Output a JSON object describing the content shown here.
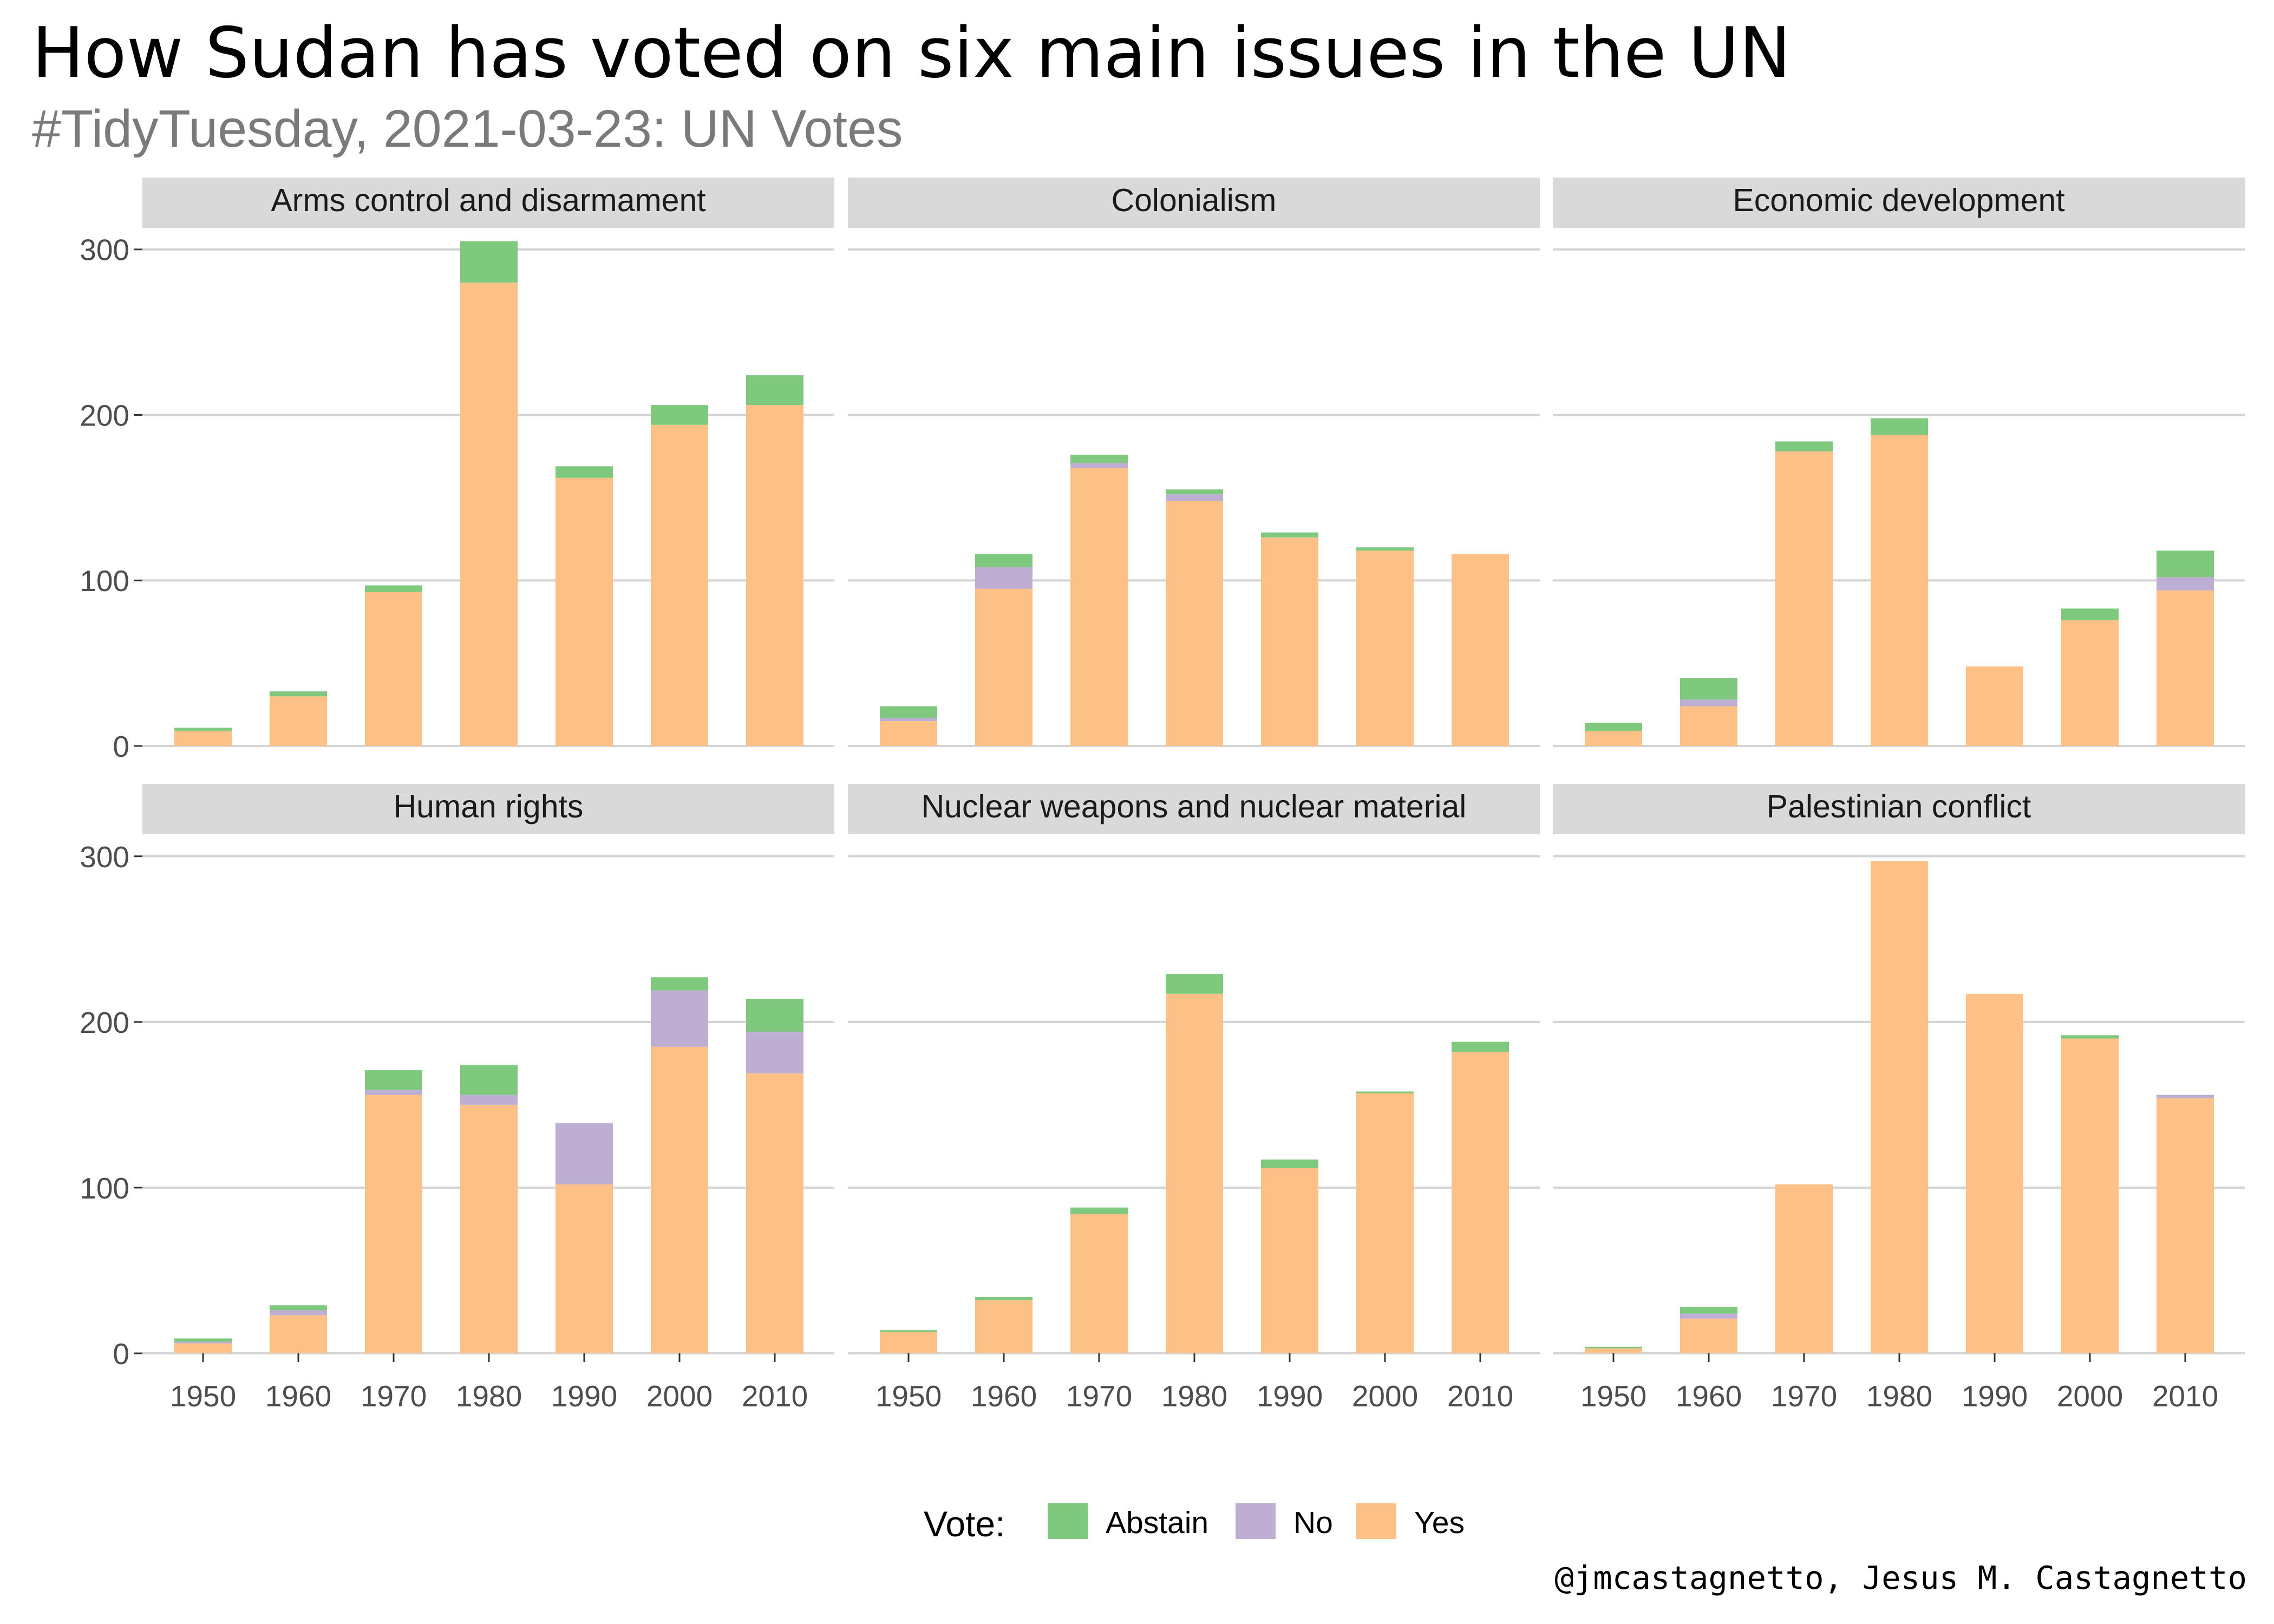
{
  "title": "How Sudan has voted on six main issues in the UN",
  "subtitle": "#TidyTuesday, 2021-03-23: UN Votes",
  "caption": "@jmcastagnetto, Jesus M. Castagnetto",
  "legend": {
    "title": "Vote:",
    "items": [
      {
        "label": "Abstain",
        "color": "#7fc97f"
      },
      {
        "label": "No",
        "color": "#beaed4"
      },
      {
        "label": "Yes",
        "color": "#fdc086"
      }
    ]
  },
  "chart_data": {
    "type": "bar",
    "stacked": true,
    "x_label": "",
    "y_label": "",
    "categories": [
      "1950",
      "1960",
      "1970",
      "1980",
      "1990",
      "2000",
      "2010"
    ],
    "ylim": [
      0,
      300
    ],
    "yticks": [
      0,
      100,
      200,
      300
    ],
    "grid": true,
    "legend_position": "bottom",
    "panels": [
      {
        "name": "Arms control and disarmament",
        "series": [
          {
            "name": "Yes",
            "values": [
              9,
              30,
              93,
              280,
              162,
              194,
              206
            ]
          },
          {
            "name": "No",
            "values": [
              0,
              0,
              0,
              0,
              0,
              0,
              0
            ]
          },
          {
            "name": "Abstain",
            "values": [
              2,
              3,
              4,
              25,
              7,
              12,
              18
            ]
          }
        ]
      },
      {
        "name": "Colonialism",
        "series": [
          {
            "name": "Yes",
            "values": [
              15,
              95,
              168,
              148,
              126,
              118,
              116
            ]
          },
          {
            "name": "No",
            "values": [
              2,
              13,
              3,
              4,
              0,
              0,
              0
            ]
          },
          {
            "name": "Abstain",
            "values": [
              7,
              8,
              5,
              3,
              3,
              2,
              0
            ]
          }
        ]
      },
      {
        "name": "Economic development",
        "series": [
          {
            "name": "Yes",
            "values": [
              9,
              24,
              178,
              188,
              48,
              76,
              94
            ]
          },
          {
            "name": "No",
            "values": [
              0,
              4,
              0,
              0,
              0,
              0,
              8
            ]
          },
          {
            "name": "Abstain",
            "values": [
              5,
              13,
              6,
              10,
              0,
              7,
              16
            ]
          }
        ]
      },
      {
        "name": "Human rights",
        "series": [
          {
            "name": "Yes",
            "values": [
              6,
              23,
              156,
              150,
              102,
              185,
              169
            ]
          },
          {
            "name": "No",
            "values": [
              1,
              3,
              3,
              6,
              37,
              34,
              25
            ]
          },
          {
            "name": "Abstain",
            "values": [
              2,
              3,
              12,
              18,
              0,
              8,
              20
            ]
          }
        ]
      },
      {
        "name": "Nuclear weapons and nuclear material",
        "series": [
          {
            "name": "Yes",
            "values": [
              13,
              32,
              84,
              217,
              112,
              157,
              182
            ]
          },
          {
            "name": "No",
            "values": [
              0,
              0,
              0,
              0,
              0,
              0,
              0
            ]
          },
          {
            "name": "Abstain",
            "values": [
              1,
              2,
              4,
              12,
              5,
              1,
              6
            ]
          }
        ]
      },
      {
        "name": "Palestinian conflict",
        "series": [
          {
            "name": "Yes",
            "values": [
              3,
              21,
              102,
              297,
              217,
              190,
              154
            ]
          },
          {
            "name": "No",
            "values": [
              0,
              3,
              0,
              0,
              0,
              0,
              2
            ]
          },
          {
            "name": "Abstain",
            "values": [
              1,
              4,
              0,
              0,
              0,
              2,
              0
            ]
          }
        ]
      }
    ]
  }
}
